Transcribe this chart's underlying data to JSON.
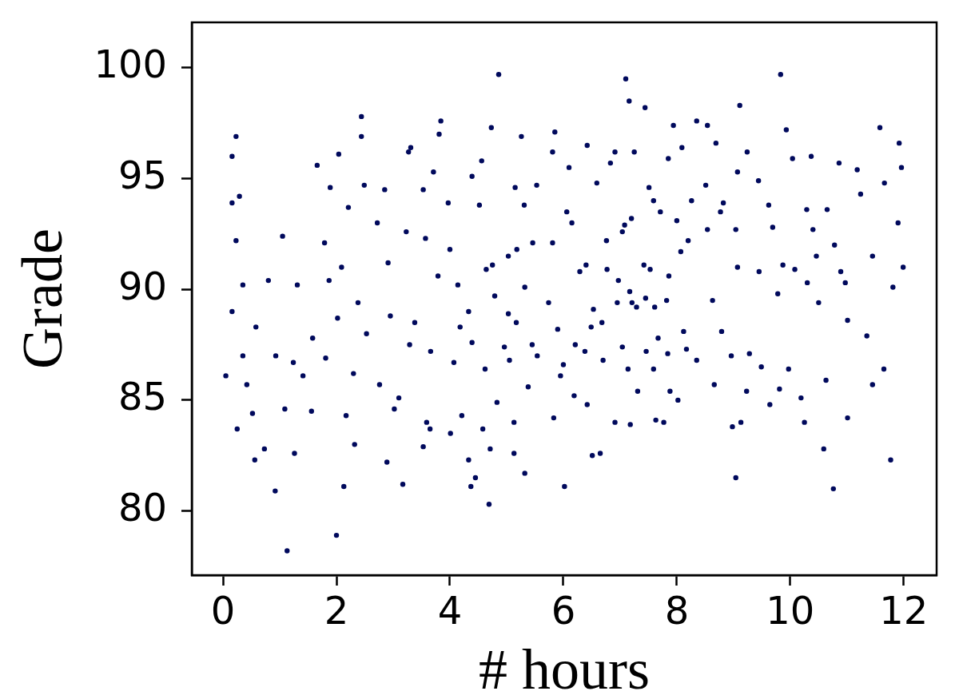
{
  "chart_data": {
    "type": "scatter",
    "xlabel": "# hours",
    "ylabel": "Grade",
    "color": "#00095c",
    "marker": "circle",
    "xlim": [
      -0.55,
      12.58
    ],
    "ylim": [
      77.1,
      102.05
    ],
    "xticks": [
      0,
      2,
      4,
      6,
      8,
      10,
      12
    ],
    "yticks": [
      80,
      85,
      90,
      95,
      100
    ],
    "x": [
      0.05,
      0.16,
      0.23,
      0.16,
      0.29,
      0.23,
      0.16,
      0.35,
      0.25,
      0.35,
      0.42,
      0.58,
      0.52,
      0.56,
      0.73,
      0.8,
      0.92,
      0.93,
      1.05,
      1.09,
      1.13,
      1.24,
      1.26,
      1.31,
      1.41,
      1.66,
      1.58,
      1.79,
      1.89,
      1.87,
      1.81,
      1.56,
      2.0,
      2.04,
      2.02,
      2.13,
      2.17,
      2.21,
      2.09,
      2.3,
      2.32,
      2.44,
      2.44,
      2.49,
      2.38,
      2.53,
      2.72,
      2.76,
      2.85,
      2.89,
      2.91,
      2.95,
      3.02,
      3.1,
      3.17,
      3.27,
      3.31,
      3.23,
      3.29,
      3.38,
      3.53,
      3.53,
      3.57,
      3.59,
      3.65,
      3.66,
      3.71,
      3.79,
      3.84,
      3.81,
      3.97,
      4.0,
      4.01,
      4.07,
      4.14,
      4.21,
      4.33,
      4.37,
      4.39,
      4.39,
      4.45,
      4.52,
      4.56,
      4.58,
      4.69,
      4.71,
      4.73,
      4.75,
      4.86,
      4.83,
      4.96,
      5.03,
      5.13,
      5.13,
      5.15,
      5.26,
      5.31,
      5.32,
      5.38,
      5.45,
      5.46,
      5.53,
      5.74,
      5.83,
      5.85,
      5.81,
      5.81,
      5.95,
      6.02,
      6.1,
      6.06,
      6.19,
      6.21,
      6.29,
      6.42,
      6.42,
      6.51,
      6.65,
      6.59,
      6.7,
      6.77,
      6.83,
      6.91,
      6.91,
      7.04,
      7.08,
      7.1,
      7.16,
      7.18,
      7.25,
      7.29,
      7.31,
      7.44,
      7.42,
      7.51,
      7.63,
      7.61,
      7.67,
      7.77,
      7.85,
      7.86,
      7.88,
      7.94,
      8.02,
      8.09,
      8.07,
      8.12,
      8.26,
      8.35,
      8.35,
      8.54,
      8.54,
      8.66,
      8.69,
      8.63,
      8.82,
      8.96,
      8.98,
      9.04,
      9.11,
      9.13,
      9.07,
      9.24,
      9.23,
      9.44,
      9.49,
      9.64,
      9.69,
      9.78,
      9.81,
      9.83,
      9.93,
      10.04,
      10.08,
      10.19,
      10.25,
      10.29,
      10.37,
      10.46,
      10.5,
      10.59,
      10.63,
      10.76,
      10.78,
      10.86,
      10.97,
      11.01,
      11.01,
      11.18,
      11.24,
      11.35,
      11.45,
      11.45,
      11.58,
      11.65,
      11.66,
      11.77,
      11.81,
      11.9,
      11.92,
      11.96,
      11.99,
      6.53,
      6.68,
      6.95,
      7.21,
      7.45,
      7.82,
      7.2,
      7.59,
      7.71,
      8.0,
      7.04,
      6.76,
      7.53,
      7.17,
      6.97,
      6.4,
      6.15,
      7.46,
      7.84,
      7.14,
      7.59,
      6.38,
      6.0,
      5.54,
      5.05,
      4.62,
      5.03,
      5.18,
      4.64,
      5.32,
      4.79,
      4.33,
      4.18,
      5.9,
      5.17,
      6.49,
      8.17,
      8.2,
      8.51,
      9.07,
      10.4,
      10.89,
      9.87,
      9.45,
      8.77,
      9.04,
      9.62,
      10.65,
      9.97,
      9.28,
      8.79,
      10.3
    ],
    "values": [
      86.1,
      96.0,
      96.9,
      93.9,
      94.2,
      92.2,
      89.0,
      90.2,
      83.7,
      87.0,
      85.7,
      88.3,
      84.4,
      82.3,
      82.8,
      90.4,
      80.9,
      87.0,
      92.4,
      84.6,
      78.2,
      86.7,
      82.6,
      90.2,
      86.1,
      95.6,
      87.8,
      92.1,
      94.6,
      90.4,
      86.9,
      84.5,
      78.9,
      96.1,
      88.7,
      81.1,
      84.3,
      93.7,
      91.0,
      86.2,
      83.0,
      97.8,
      96.9,
      94.7,
      89.4,
      88.0,
      93.0,
      85.7,
      94.5,
      82.2,
      91.2,
      88.8,
      84.6,
      85.1,
      81.2,
      96.2,
      96.4,
      92.6,
      87.5,
      88.5,
      82.9,
      94.5,
      92.3,
      84.0,
      83.7,
      87.2,
      95.3,
      90.6,
      97.6,
      97.0,
      93.9,
      91.8,
      83.5,
      86.7,
      90.2,
      84.3,
      82.3,
      81.1,
      95.1,
      87.6,
      81.5,
      93.8,
      95.8,
      83.7,
      80.3,
      82.8,
      97.3,
      91.1,
      99.7,
      84.9,
      87.4,
      88.9,
      82.6,
      84.0,
      94.6,
      96.9,
      93.8,
      81.7,
      85.6,
      87.5,
      92.1,
      94.7,
      89.4,
      84.2,
      97.1,
      96.2,
      92.1,
      86.1,
      81.1,
      95.5,
      93.5,
      85.2,
      87.5,
      90.8,
      96.5,
      84.8,
      82.5,
      82.6,
      94.8,
      86.8,
      90.9,
      95.7,
      84.0,
      96.2,
      87.4,
      92.9,
      99.5,
      98.5,
      83.9,
      96.2,
      89.2,
      85.4,
      98.2,
      91.1,
      94.6,
      84.1,
      89.2,
      87.8,
      84.0,
      95.9,
      90.6,
      85.4,
      97.4,
      85.0,
      96.4,
      91.7,
      88.1,
      94.0,
      97.6,
      86.8,
      97.4,
      92.7,
      85.7,
      96.6,
      89.5,
      93.9,
      87.0,
      83.8,
      81.5,
      98.3,
      84.0,
      91.0,
      96.2,
      85.4,
      94.9,
      86.5,
      84.8,
      92.8,
      89.8,
      85.5,
      99.7,
      97.2,
      95.9,
      90.9,
      85.1,
      84.0,
      93.6,
      96.0,
      91.5,
      89.4,
      82.8,
      85.9,
      81.0,
      92.0,
      95.7,
      90.3,
      84.2,
      88.6,
      95.4,
      94.3,
      87.9,
      85.7,
      91.5,
      97.3,
      86.4,
      94.8,
      82.3,
      90.1,
      93.0,
      96.6,
      95.5,
      91.0,
      89.1,
      88.5,
      89.4,
      89.4,
      89.6,
      89.5,
      93.2,
      94.0,
      93.5,
      93.1,
      92.6,
      92.2,
      90.9,
      89.9,
      90.4,
      91.1,
      93.0,
      87.2,
      87.1,
      86.4,
      86.4,
      87.2,
      86.6,
      87.0,
      86.8,
      86.4,
      91.5,
      91.8,
      90.9,
      90.1,
      89.7,
      89.0,
      88.3,
      88.2,
      88.5,
      88.3,
      87.3,
      92.2,
      94.7,
      95.3,
      92.7,
      90.8,
      91.1,
      90.8,
      93.5,
      92.7,
      93.8,
      93.6,
      86.4,
      87.1,
      88.1,
      90.3
    ]
  }
}
